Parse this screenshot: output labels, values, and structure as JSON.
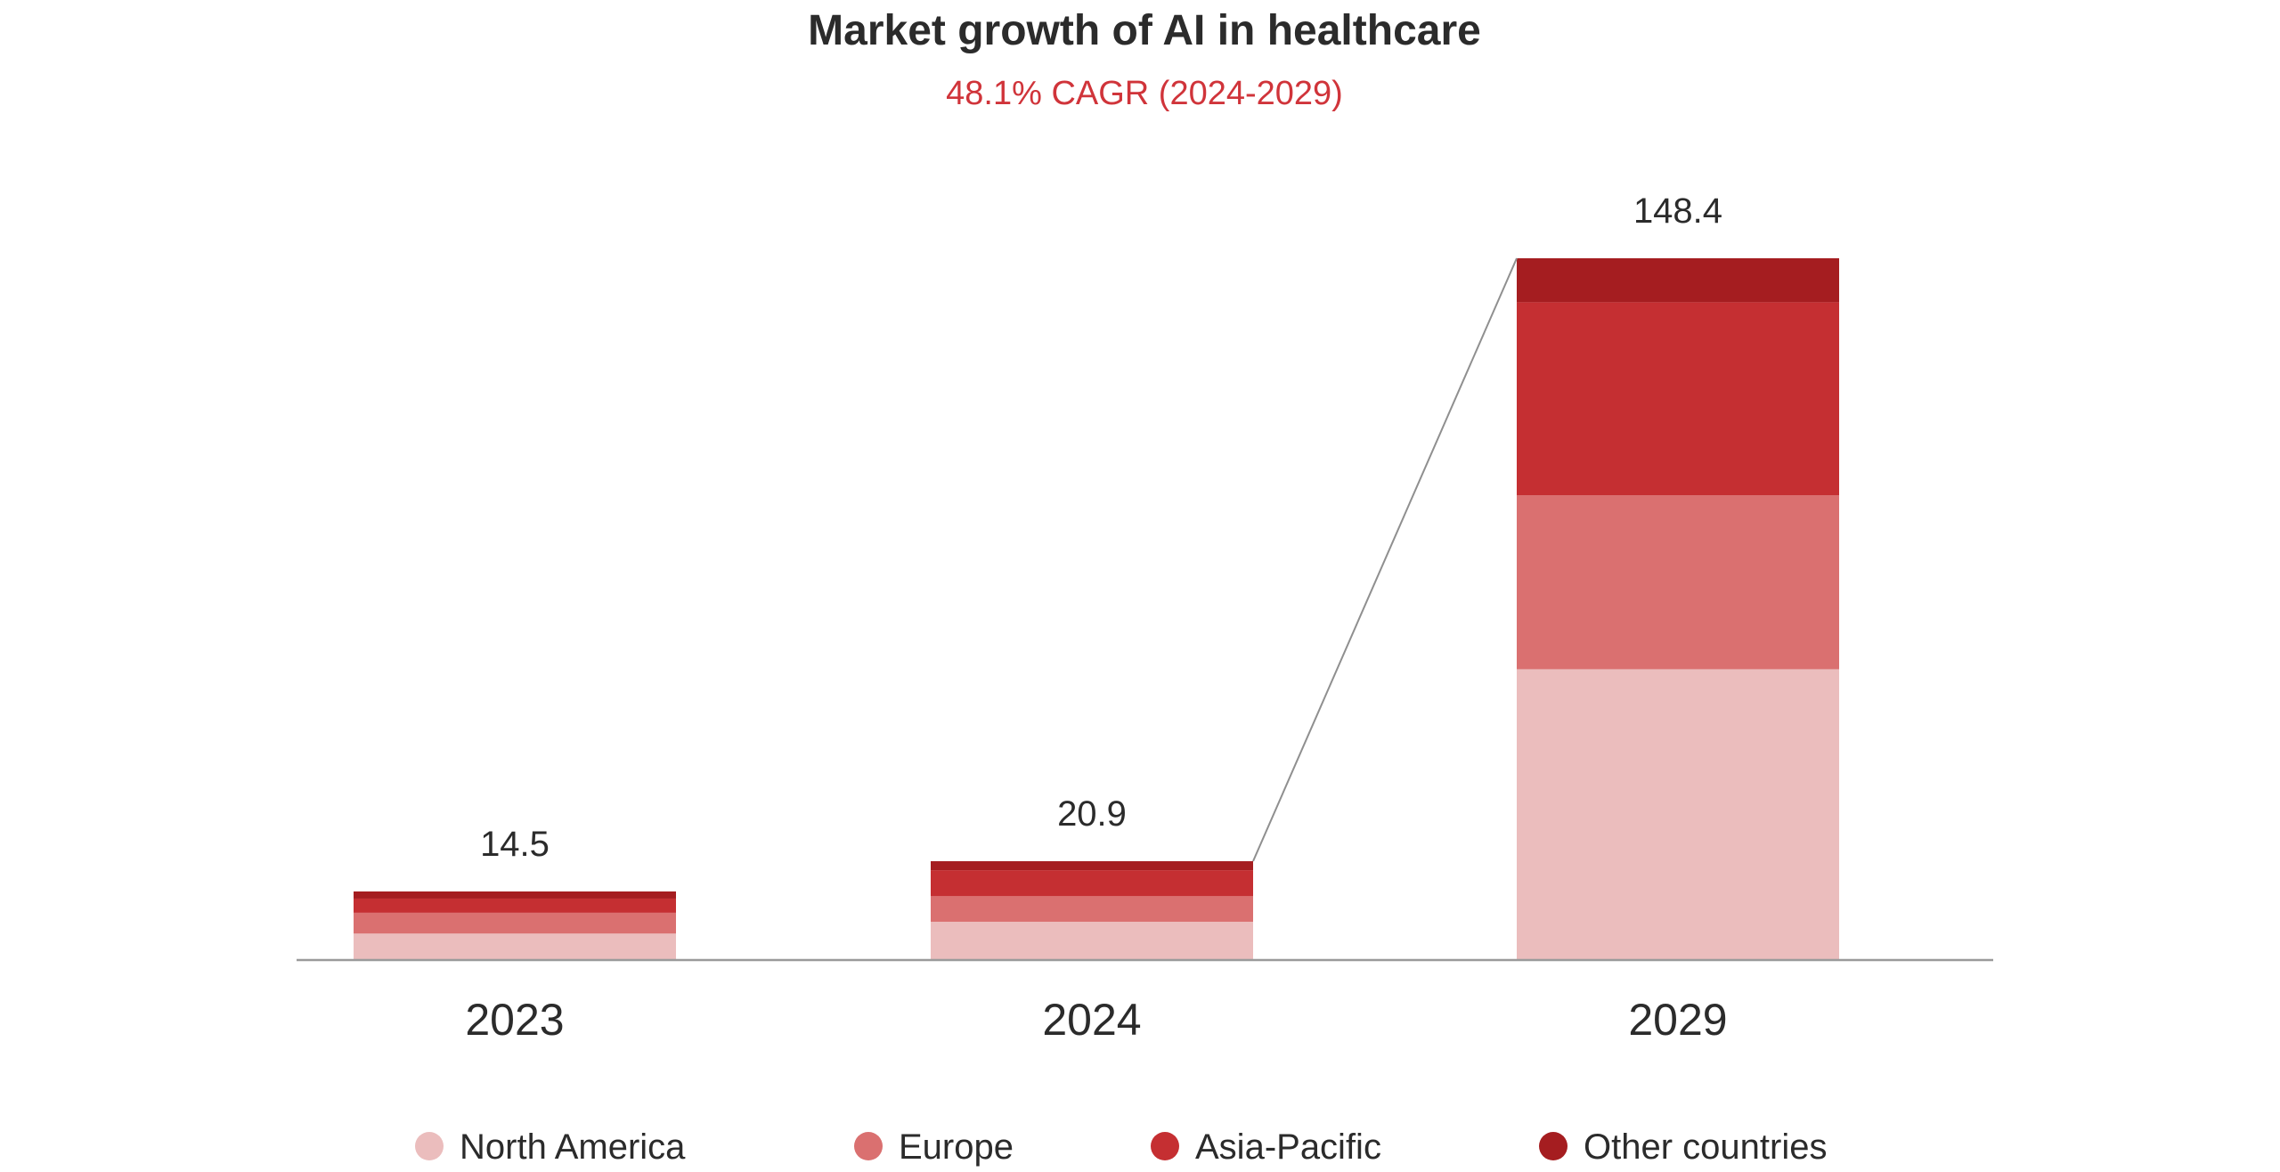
{
  "chart_data": {
    "type": "bar",
    "stacked": true,
    "title": "Market growth of AI in healthcare",
    "subtitle": "48.1% CAGR (2024-2029)",
    "xlabel": "",
    "ylabel": "",
    "categories": [
      "2023",
      "2024",
      "2029"
    ],
    "totals": [
      "14.5",
      "20.9",
      "148.4"
    ],
    "total_values": [
      14.5,
      20.9,
      148.4
    ],
    "ylim": [
      0,
      148.4
    ],
    "grid": false,
    "legend_position": "bottom",
    "series": [
      {
        "name": "North America",
        "color": "#EBBDBD",
        "values": [
          5.6,
          8.1,
          61.5
        ]
      },
      {
        "name": "Europe",
        "color": "#DA7070",
        "values": [
          4.4,
          5.4,
          36.8
        ]
      },
      {
        "name": "Asia-Pacific",
        "color": "#C52F32",
        "values": [
          3.0,
          5.5,
          40.8
        ]
      },
      {
        "name": "Other countries",
        "color": "#A51D20",
        "values": [
          1.5,
          1.9,
          9.3
        ]
      }
    ],
    "subtitle_color": "#D0343A",
    "connector_line": {
      "from": "2024",
      "to": "2029"
    }
  }
}
